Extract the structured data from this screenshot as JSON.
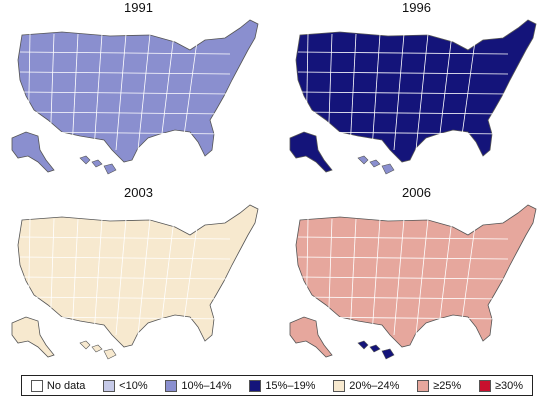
{
  "colors": {
    "nodata": "#ffffff",
    "lt10": "#c6cae8",
    "10_14": "#8a8fcf",
    "15_19": "#14147a",
    "20_24": "#f7e9cf",
    "ge25": "#e6a79d",
    "ge30": "#c8102e",
    "border": "#ffffff",
    "outline": "#555555"
  },
  "panels": [
    {
      "title": "1991",
      "base": "10_14",
      "alaska": "10_14",
      "hawaii": "10_14"
    },
    {
      "title": "1996",
      "base": "15_19",
      "alaska": "15_19",
      "hawaii": "10_14"
    },
    {
      "title": "2003",
      "base": "20_24",
      "alaska": "20_24",
      "hawaii": "20_24"
    },
    {
      "title": "2006",
      "base": "ge25",
      "alaska": "ge25",
      "hawaii": "15_19"
    }
  ],
  "legend": [
    {
      "label": "No data",
      "key": "nodata"
    },
    {
      "label": "<10%",
      "key": "lt10"
    },
    {
      "label": "10%–14%",
      "key": "10_14"
    },
    {
      "label": "15%–19%",
      "key": "15_19"
    },
    {
      "label": "20%–24%",
      "key": "20_24"
    },
    {
      "label": "≥25%",
      "key": "ge25"
    },
    {
      "label": "≥30%",
      "key": "ge30"
    }
  ]
}
